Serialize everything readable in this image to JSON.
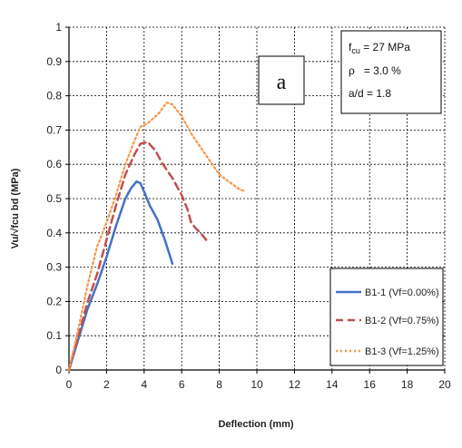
{
  "chart_data": {
    "type": "line",
    "xlabel": "Deflection (mm)",
    "ylabel": "Vu/√fcu bd (MPa)",
    "xlim": [
      0,
      20
    ],
    "ylim": [
      0,
      1
    ],
    "xticks": [
      "0",
      "2",
      "4",
      "6",
      "8",
      "10",
      "12",
      "14",
      "16",
      "18",
      "20"
    ],
    "yticks": [
      "0",
      "0.1",
      "0.2",
      "0.3",
      "0.4",
      "0.5",
      "0.6",
      "0.7",
      "0.8",
      "0.9",
      "1"
    ],
    "grid": true,
    "legend_position": "bottom-right",
    "panel_label": "a",
    "info_box": {
      "line1_main": "f",
      "line1_sub": "cu",
      "line1_rest": " = 27 MPa",
      "line2": "ρ   = 3.0 %",
      "line3": "a/d = 1.8"
    },
    "series": [
      {
        "name": "B1-1 (Vf=0.00%)",
        "color": "#4472C4",
        "dash": "solid",
        "x": [
          0,
          0.5,
          1.0,
          1.5,
          2.0,
          2.5,
          3.0,
          3.3,
          3.6,
          3.8,
          4.0,
          4.3,
          4.7,
          5.1,
          5.5
        ],
        "y": [
          0,
          0.09,
          0.18,
          0.25,
          0.33,
          0.42,
          0.5,
          0.53,
          0.55,
          0.545,
          0.52,
          0.48,
          0.44,
          0.38,
          0.31
        ]
      },
      {
        "name": "B1-2 (Vf=0.75%)",
        "color": "#C0504D",
        "dash": "dashed",
        "x": [
          0,
          0.5,
          1.0,
          1.5,
          2.0,
          2.5,
          3.0,
          3.5,
          3.8,
          4.2,
          4.6,
          5.0,
          5.5,
          6.0,
          6.3,
          6.5,
          6.8,
          7.0,
          7.3
        ],
        "y": [
          0,
          0.1,
          0.2,
          0.28,
          0.38,
          0.48,
          0.57,
          0.63,
          0.66,
          0.665,
          0.64,
          0.6,
          0.56,
          0.51,
          0.47,
          0.43,
          0.41,
          0.4,
          0.38
        ]
      },
      {
        "name": "B1-3 (Vf=1.25%)",
        "color": "#F79646",
        "dash": "dotted",
        "x": [
          0,
          0.5,
          1.0,
          1.5,
          2.0,
          2.5,
          3.0,
          3.5,
          3.8,
          4.2,
          4.8,
          5.2,
          5.5,
          6.0,
          6.5,
          7.0,
          7.5,
          8.0,
          8.5,
          9.0,
          9.4
        ],
        "y": [
          0,
          0.12,
          0.25,
          0.36,
          0.43,
          0.51,
          0.6,
          0.67,
          0.71,
          0.72,
          0.75,
          0.78,
          0.775,
          0.74,
          0.69,
          0.65,
          0.61,
          0.57,
          0.55,
          0.53,
          0.52
        ]
      }
    ]
  }
}
